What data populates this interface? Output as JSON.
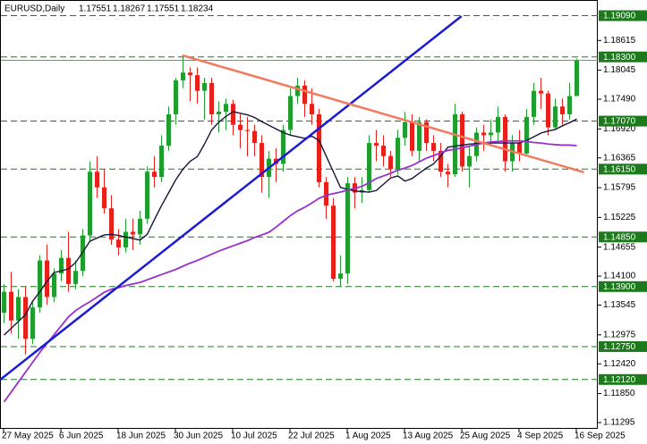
{
  "chart_data": {
    "type": "candlestick",
    "title": "EURUSD,Daily",
    "categories": [
      "27 May 2025",
      null,
      null,
      null,
      null,
      null,
      null,
      null,
      "6 Jun 2025",
      null,
      null,
      null,
      null,
      null,
      null,
      null,
      "18 Jun 2025",
      null,
      null,
      null,
      null,
      null,
      null,
      null,
      "30 Jun 2025",
      null,
      null,
      null,
      null,
      null,
      null,
      null,
      "10 Jul 2025",
      null,
      null,
      null,
      null,
      null,
      null,
      null,
      "22 Jul 2025",
      null,
      null,
      null,
      null,
      null,
      null,
      null,
      "1 Aug 2025",
      null,
      null,
      null,
      null,
      null,
      null,
      null,
      "13 Aug 2025",
      null,
      null,
      null,
      null,
      null,
      null,
      null,
      "25 Aug 2025",
      null,
      null,
      null,
      null,
      null,
      null,
      null,
      "4 Sep 2025",
      null,
      null,
      null,
      null,
      null,
      null,
      null,
      "16 Sep 2025"
    ],
    "open": [
      1.134,
      1.138,
      1.1325,
      1.137,
      1.129,
      1.135,
      1.144,
      1.137,
      1.1415,
      1.1445,
      1.1395,
      1.142,
      1.1488,
      1.161,
      1.158,
      1.154,
      1.148,
      1.1465,
      1.1495,
      1.149,
      1.152,
      1.161,
      1.16,
      1.166,
      1.172,
      1.1785,
      1.18,
      1.1795,
      1.1765,
      1.178,
      1.172,
      1.1725,
      1.174,
      1.17,
      1.169,
      1.1688,
      1.1665,
      1.16,
      1.1635,
      1.1625,
      1.169,
      1.1755,
      1.1775,
      1.174,
      1.172,
      1.159,
      1.1545,
      1.1405,
      1.1415,
      1.1588,
      1.157,
      1.1575,
      1.1665,
      1.166,
      1.164,
      1.1615,
      1.1675,
      1.1705,
      1.165,
      1.1705,
      1.1665,
      1.165,
      1.161,
      1.1605,
      1.172,
      1.162,
      1.164,
      1.1685,
      1.168,
      1.1685,
      1.1715,
      1.163,
      1.1665,
      1.1645,
      1.1715,
      1.1765,
      1.176,
      1.1695,
      1.1735,
      1.172,
      1.17551
    ],
    "high": [
      1.1395,
      1.1418,
      1.1385,
      1.139,
      1.136,
      1.145,
      1.147,
      1.1425,
      1.146,
      1.1495,
      1.144,
      1.15,
      1.163,
      1.164,
      1.1615,
      1.1565,
      1.15,
      1.152,
      1.152,
      1.1535,
      1.162,
      1.164,
      1.168,
      1.1735,
      1.179,
      1.183,
      1.181,
      1.181,
      1.179,
      1.179,
      1.1745,
      1.175,
      1.1748,
      1.172,
      1.1715,
      1.17,
      1.168,
      1.165,
      1.1655,
      1.17,
      1.177,
      1.179,
      1.1785,
      1.177,
      1.173,
      1.16,
      1.156,
      1.145,
      1.16,
      1.16,
      1.16,
      1.168,
      1.169,
      1.168,
      1.165,
      1.169,
      1.1725,
      1.172,
      1.1715,
      1.171,
      1.168,
      1.1665,
      1.1625,
      1.174,
      1.1725,
      1.166,
      1.1695,
      1.17,
      1.171,
      1.1735,
      1.172,
      1.168,
      1.169,
      1.173,
      1.178,
      1.179,
      1.1765,
      1.175,
      1.175,
      1.178,
      1.18267
    ],
    "low": [
      1.132,
      1.13,
      1.129,
      1.126,
      1.128,
      1.134,
      1.1355,
      1.136,
      1.14,
      1.138,
      1.1385,
      1.141,
      1.1475,
      1.156,
      1.153,
      1.147,
      1.145,
      1.1455,
      1.146,
      1.147,
      1.151,
      1.158,
      1.159,
      1.165,
      1.17,
      1.177,
      1.1745,
      1.174,
      1.171,
      1.17,
      1.1685,
      1.169,
      1.168,
      1.1655,
      1.164,
      1.164,
      1.157,
      1.156,
      1.159,
      1.161,
      1.168,
      1.174,
      1.1715,
      1.17,
      1.158,
      1.152,
      1.14,
      1.139,
      1.1395,
      1.154,
      1.155,
      1.157,
      1.163,
      1.162,
      1.16,
      1.1605,
      1.166,
      1.164,
      1.163,
      1.165,
      1.163,
      1.16,
      1.158,
      1.16,
      1.161,
      1.158,
      1.163,
      1.165,
      1.166,
      1.167,
      1.161,
      1.161,
      1.163,
      1.164,
      1.17,
      1.173,
      1.168,
      1.169,
      1.17,
      1.171,
      1.17551
    ],
    "close": [
      1.138,
      1.1325,
      1.137,
      1.129,
      1.135,
      1.144,
      1.137,
      1.1415,
      1.1445,
      1.1395,
      1.142,
      1.1488,
      1.161,
      1.158,
      1.154,
      1.148,
      1.1465,
      1.1495,
      1.149,
      1.152,
      1.161,
      1.16,
      1.166,
      1.172,
      1.1785,
      1.18,
      1.1795,
      1.1765,
      1.178,
      1.172,
      1.1725,
      1.174,
      1.17,
      1.169,
      1.1688,
      1.1665,
      1.16,
      1.1635,
      1.1625,
      1.169,
      1.1755,
      1.1775,
      1.174,
      1.172,
      1.159,
      1.1545,
      1.1405,
      1.1415,
      1.1588,
      1.157,
      1.1575,
      1.1665,
      1.166,
      1.164,
      1.1615,
      1.1675,
      1.1705,
      1.165,
      1.1705,
      1.1665,
      1.165,
      1.161,
      1.1605,
      1.172,
      1.162,
      1.164,
      1.1685,
      1.168,
      1.1685,
      1.1715,
      1.163,
      1.1665,
      1.1645,
      1.1715,
      1.1765,
      1.176,
      1.1695,
      1.1735,
      1.172,
      1.1755,
      1.18234
    ],
    "up_color": "#1f9d2f",
    "down_color": "#e8201a",
    "moving_averages": [
      {
        "color": "#15153a",
        "values": [
          1.1297,
          1.131,
          1.1323,
          1.1336,
          1.1362,
          1.138,
          1.14,
          1.1417,
          1.142,
          1.1424,
          1.1436,
          1.1456,
          1.1477,
          1.1483,
          1.1489,
          1.149,
          1.1488,
          1.1485,
          1.1482,
          1.1479,
          1.149,
          1.1518,
          1.1545,
          1.157,
          1.1595,
          1.1615,
          1.163,
          1.1639,
          1.1663,
          1.169,
          1.1705,
          1.1716,
          1.1725,
          1.1722,
          1.1719,
          1.1714,
          1.1706,
          1.1699,
          1.1692,
          1.1685,
          1.168,
          1.1677,
          1.1674,
          1.1678,
          1.167,
          1.164,
          1.161,
          1.158,
          1.1576,
          1.1573,
          1.1572,
          1.1571,
          1.1574,
          1.1586,
          1.1598,
          1.1602,
          1.1592,
          1.1597,
          1.1607,
          1.1617,
          1.1625,
          1.164,
          1.1657,
          1.1659,
          1.1661,
          1.1663,
          1.1664,
          1.1665,
          1.1665,
          1.1665,
          1.1665,
          1.1665,
          1.1665,
          1.167,
          1.1677,
          1.1684,
          1.1688,
          1.1691,
          1.1698,
          1.1704,
          1.1711
        ]
      },
      {
        "color": "#9a2fcf",
        "values": [
          1.1169,
          1.1188,
          1.1207,
          1.1226,
          1.1245,
          1.1264,
          1.1281,
          1.1298,
          1.1315,
          1.1332,
          1.1344,
          1.1353,
          1.1361,
          1.137,
          1.1379,
          1.1385,
          1.1388,
          1.1392,
          1.1395,
          1.1398,
          1.1403,
          1.1408,
          1.1413,
          1.1418,
          1.1423,
          1.1429,
          1.1435,
          1.144,
          1.1446,
          1.1452,
          1.1458,
          1.1463,
          1.1468,
          1.1473,
          1.1478,
          1.1484,
          1.1489,
          1.1494,
          1.1504,
          1.1515,
          1.1526,
          1.1535,
          1.1542,
          1.155,
          1.1559,
          1.1565,
          1.1568,
          1.1571,
          1.1575,
          1.1578,
          1.1582,
          1.1589,
          1.1597,
          1.1602,
          1.1607,
          1.1613,
          1.1617,
          1.1622,
          1.1629,
          1.1636,
          1.1641,
          1.1646,
          1.1651,
          1.1653,
          1.1656,
          1.1659,
          1.1662,
          1.1665,
          1.1667,
          1.1668,
          1.1669,
          1.1669,
          1.1669,
          1.1668,
          1.1666,
          1.1665,
          1.1663,
          1.1662,
          1.1661,
          1.1661,
          1.166
        ]
      }
    ],
    "trendlines": [
      {
        "color": "#1b1bd6",
        "x": [
          -0.5,
          63.9
        ],
        "y": [
          1.1212,
          1.1908
        ]
      },
      {
        "color": "#f27a5e",
        "x": [
          24.9,
          81
        ],
        "y": [
          1.1833,
          1.1609
        ]
      }
    ],
    "levels": [
      {
        "value": 1.1909,
        "label": "1.19090"
      },
      {
        "value": 1.183,
        "label": "1.18300"
      },
      {
        "value": 1.1707,
        "label": "1.17070"
      },
      {
        "value": 1.1615,
        "label": "1.16150"
      },
      {
        "value": 1.1485,
        "label": "1.14850"
      },
      {
        "value": 1.139,
        "label": "1.13900"
      },
      {
        "value": 1.1275,
        "label": "1.12750"
      },
      {
        "value": 1.1212,
        "label": "1.12120"
      }
    ],
    "level_color": "#1c7a1c",
    "ylim": [
      1.11175,
      1.1939
    ],
    "yticks": [
      {
        "value": 1.18615,
        "label": "1.18615"
      },
      {
        "value": 1.18045,
        "label": "1.18045"
      },
      {
        "value": 1.1749,
        "label": "1.17490"
      },
      {
        "value": 1.1692,
        "label": "1.16920"
      },
      {
        "value": 1.16365,
        "label": "1.16365"
      },
      {
        "value": 1.15795,
        "label": "1.15795"
      },
      {
        "value": 1.15225,
        "label": "1.15225"
      },
      {
        "value": 1.14655,
        "label": "1.14655"
      },
      {
        "value": 1.141,
        "label": "1.14100"
      },
      {
        "value": 1.13545,
        "label": "1.13545"
      },
      {
        "value": 1.12975,
        "label": "1.12975"
      },
      {
        "value": 1.1242,
        "label": "1.12420"
      },
      {
        "value": 1.1185,
        "label": "1.11850"
      },
      {
        "value": 1.11295,
        "label": "1.11295"
      }
    ],
    "grid": false
  }
}
